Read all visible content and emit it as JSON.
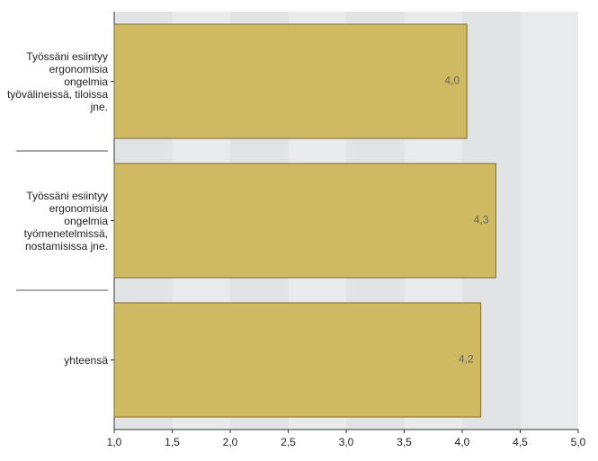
{
  "chart_data": {
    "type": "hbar",
    "categories": [
      "Työssäni esiintyy ergonomisia ongelmia työvälineissä, tiloissa jne.",
      "Työssäni esiintyy ergonomisia ongelmia työmenetelmissä, nostamisissa jne.",
      "yhteensä"
    ],
    "values": [
      4.04,
      4.29,
      4.16
    ],
    "value_labels": [
      "4,0",
      "4,3",
      "4,2"
    ],
    "color": "#cfb962",
    "xlim": [
      1,
      5
    ],
    "xticks": [
      {
        "value": 1,
        "label": "1,0"
      },
      {
        "value": 1.5,
        "label": "1,5"
      },
      {
        "value": 2,
        "label": "2,0"
      },
      {
        "value": 2.5,
        "label": "2,5"
      },
      {
        "value": 3,
        "label": "3,0"
      },
      {
        "value": 3.5,
        "label": "3,5"
      },
      {
        "value": 4,
        "label": "4,0"
      },
      {
        "value": 4.5,
        "label": "4,5"
      },
      {
        "value": 5,
        "label": "5,0"
      }
    ]
  }
}
